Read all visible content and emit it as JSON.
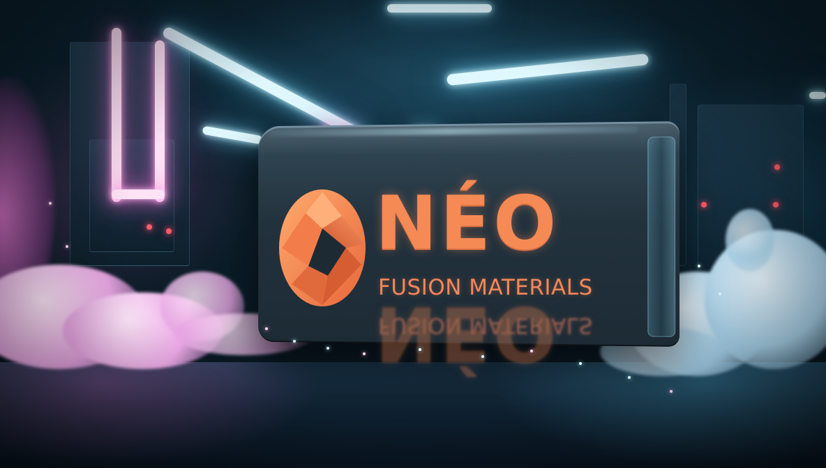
{
  "brand": {
    "name": "NÉO",
    "tagline": "FUSION MATERIALS",
    "logo_icon": "faceted-diamond-emblem-icon"
  },
  "colors": {
    "brand_orange": "#f58a55",
    "sign_body": "#22323d",
    "neon_cyan": "#bff2ff",
    "neon_pink": "#ff9be3"
  }
}
